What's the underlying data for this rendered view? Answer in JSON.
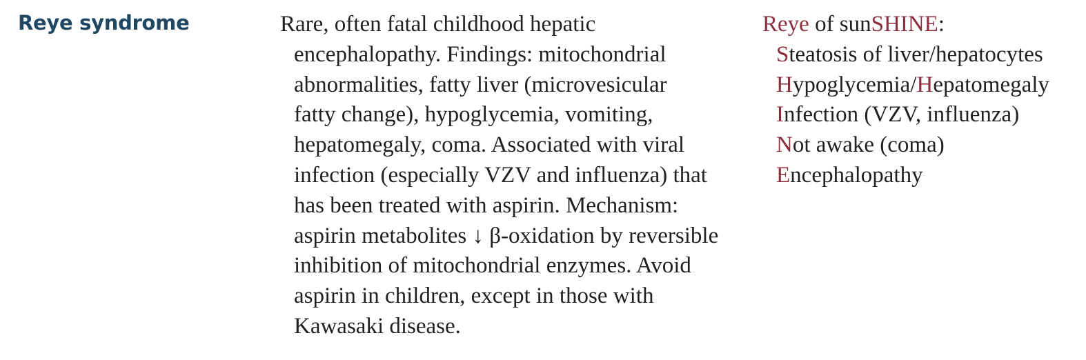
{
  "term": "Reye syndrome",
  "description_lines": [
    "Rare, often fatal childhood hepatic",
    "encephalopathy. Findings: mitochondrial",
    "abnormalities, fatty liver (microvesicular",
    "fatty change), hypoglycemia, vomiting,",
    "hepatomegaly, coma. Associated with viral",
    "infection (especially VZV and influenza) that",
    "has been treated with aspirin. Mechanism:",
    "aspirin metabolites ↓ β-oxidation by reversible",
    "inhibition of mitochondrial enzymes. Avoid",
    "aspirin in children, except in those with",
    "Kawasaki disease."
  ],
  "mnemonic": {
    "headline": {
      "part1": "Reye",
      "part2": " of sun",
      "part3": "SHINE",
      "part4": ":"
    },
    "items": [
      {
        "letter": "S",
        "rest": "teatosis of liver/hepatocytes"
      },
      {
        "letter": "H",
        "rest": "ypoglycemia/",
        "letter2": "H",
        "rest2": "epatomegaly"
      },
      {
        "letter": "I",
        "rest": "nfection (VZV, influenza)"
      },
      {
        "letter": "N",
        "rest": "ot awake (coma)"
      },
      {
        "letter": "E",
        "rest": "ncephalopathy"
      }
    ]
  },
  "colors": {
    "term": "#1f4763",
    "accent": "#8b2e3c",
    "body_text": "#231f20"
  }
}
